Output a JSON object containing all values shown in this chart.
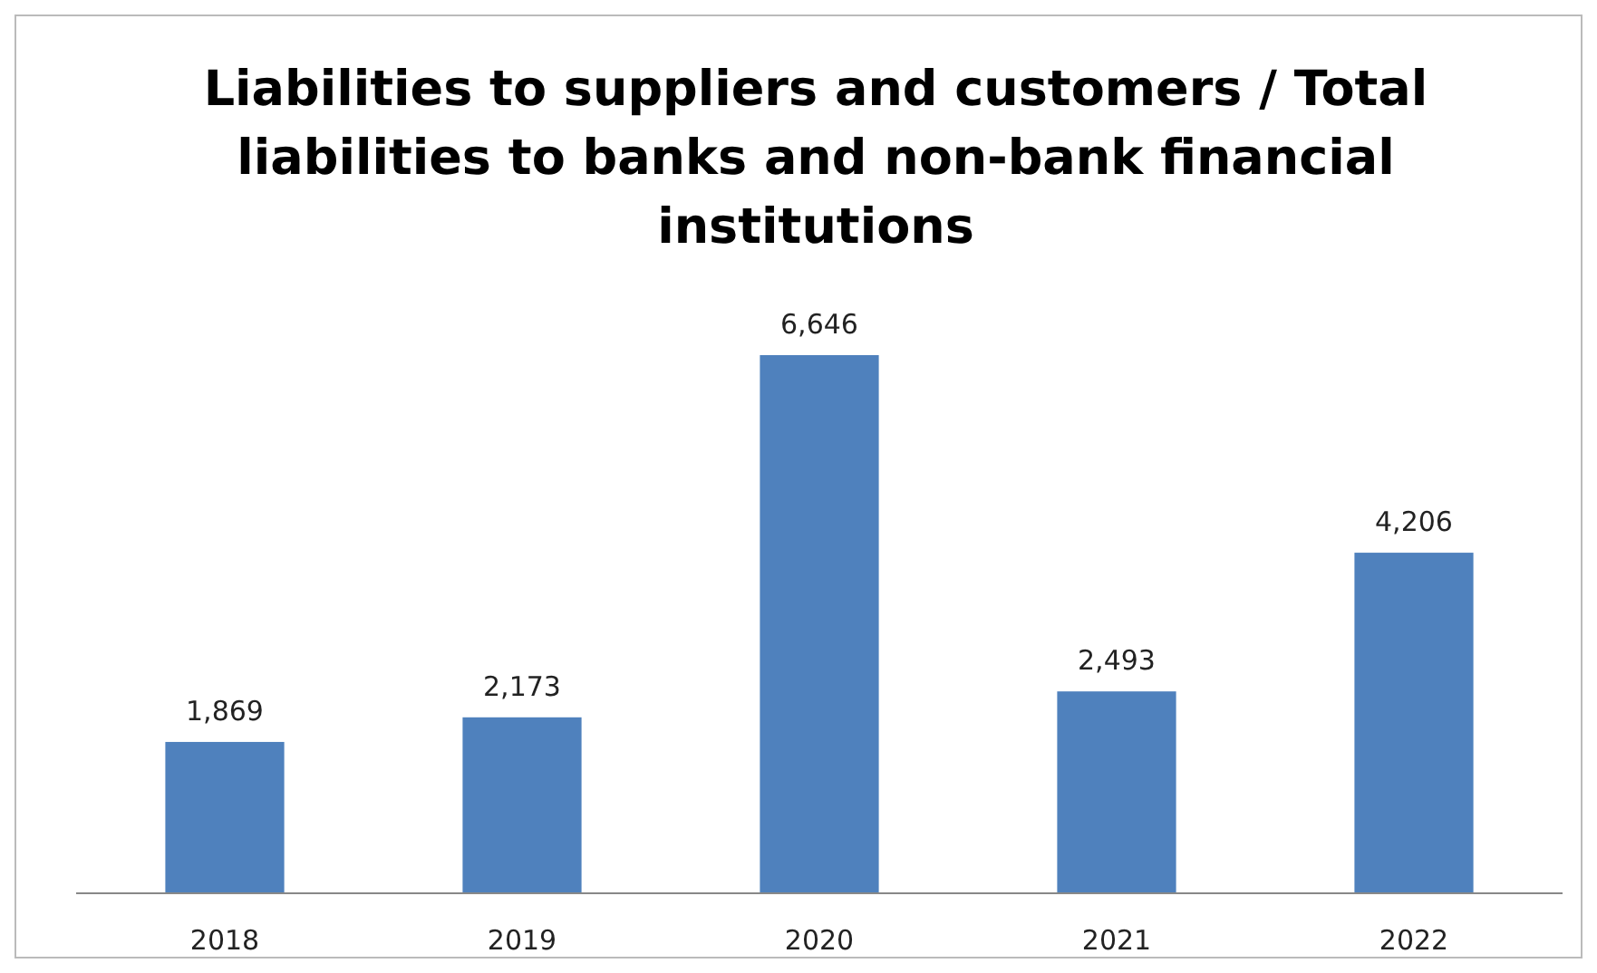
{
  "chart_data": {
    "type": "bar",
    "title": "Liabilities to suppliers and customers / Total liabilities to banks and non-bank financial institutions",
    "categories": [
      "2018",
      "2019",
      "2020",
      "2021",
      "2022"
    ],
    "values": [
      1869,
      2173,
      6646,
      2493,
      4206
    ],
    "value_labels": [
      "1,869",
      "2,173",
      "6,646",
      "2,493",
      "4,206"
    ],
    "color": "#4f81bd",
    "tick_labels": "x"
  }
}
